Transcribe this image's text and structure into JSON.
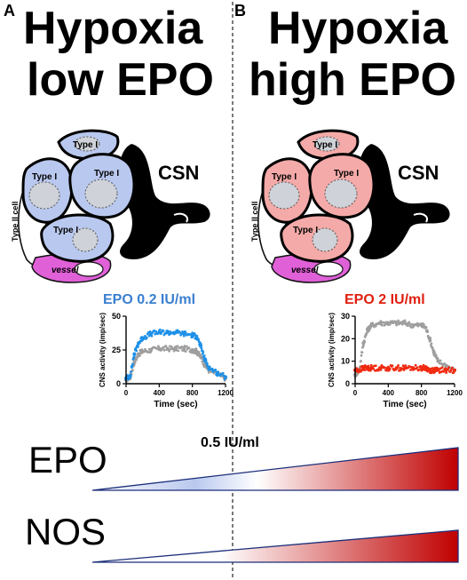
{
  "panels": [
    {
      "letter": "A",
      "title_line1": "Hypoxia",
      "title_line2": "low EPO",
      "type1_labels": [
        "Type I",
        "Type I",
        "Type I",
        "Type I"
      ],
      "type2_label": "Type II cell",
      "vessel_label": "vessel",
      "csn_label": "CSN",
      "cell_fill": "#b9c8ee",
      "chart_title": "EPO 0.2 IU/ml",
      "chart_title_color": "#3a7fd0"
    },
    {
      "letter": "B",
      "title_line1": "Hypoxia",
      "title_line2": "high EPO",
      "type1_labels": [
        "Type I",
        "Type I",
        "Type I",
        "Type I"
      ],
      "type2_label": "Type II cell",
      "vessel_label": "vessel",
      "csn_label": "CSN",
      "cell_fill": "#f4aaa8",
      "chart_title": "EPO 2 IU/ml",
      "chart_title_color": "#e02010"
    }
  ],
  "chart_data": [
    {
      "type": "scatter",
      "title": "EPO 0.2 IU/ml",
      "xlabel": "Time (sec)",
      "ylabel": "CNS activity (imp/sec)",
      "xlim": [
        0,
        1200
      ],
      "ylim": [
        0,
        50
      ],
      "xticks": [
        0,
        400,
        800,
        1200
      ],
      "yticks": [
        0,
        25,
        50
      ],
      "series": [
        {
          "color": "#9e9e9e",
          "x": [
            0,
            50,
            100,
            150,
            200,
            300,
            400,
            500,
            600,
            700,
            800,
            850,
            900,
            950,
            1000,
            1100,
            1200
          ],
          "y": [
            3,
            5,
            16,
            22,
            24,
            25,
            26,
            26,
            26,
            26,
            25,
            24,
            20,
            14,
            10,
            7,
            4
          ]
        },
        {
          "color": "#1e90e8",
          "x": [
            0,
            50,
            100,
            150,
            200,
            300,
            400,
            500,
            600,
            700,
            800,
            850,
            900,
            950,
            1000,
            1100,
            1200
          ],
          "y": [
            4,
            6,
            22,
            30,
            34,
            37,
            38,
            38,
            38,
            37,
            36,
            35,
            28,
            18,
            12,
            8,
            5
          ]
        }
      ]
    },
    {
      "type": "scatter",
      "title": "EPO 2 IU/ml",
      "xlabel": "Time (sec)",
      "ylabel": "CNS activity (imp/sec)",
      "xlim": [
        0,
        1200
      ],
      "ylim": [
        0,
        30
      ],
      "xticks": [
        0,
        400,
        800,
        1200
      ],
      "yticks": [
        0,
        10,
        20,
        30
      ],
      "series": [
        {
          "color": "#9e9e9e",
          "x": [
            0,
            50,
            100,
            150,
            200,
            300,
            400,
            500,
            600,
            700,
            800,
            850,
            900,
            950,
            1000,
            1100,
            1200
          ],
          "y": [
            4,
            6,
            18,
            24,
            26,
            27,
            27,
            27,
            27,
            26,
            26,
            25,
            20,
            14,
            10,
            8,
            6
          ]
        },
        {
          "color": "#f02a10",
          "x": [
            0,
            50,
            100,
            150,
            200,
            300,
            400,
            500,
            600,
            700,
            800,
            850,
            900,
            950,
            1000,
            1100,
            1200
          ],
          "y": [
            6,
            6,
            7,
            7,
            7,
            7,
            7,
            7,
            7,
            7,
            7,
            7,
            6,
            6,
            6,
            6,
            6
          ]
        }
      ]
    }
  ],
  "gradient": {
    "threshold_label": "0.5 IU/ml",
    "rows": [
      {
        "label": "EPO"
      },
      {
        "label": "NOS"
      }
    ],
    "low_color": "#ffffff",
    "mid_color": "#b9c8ee",
    "high_color": "#c00000"
  }
}
